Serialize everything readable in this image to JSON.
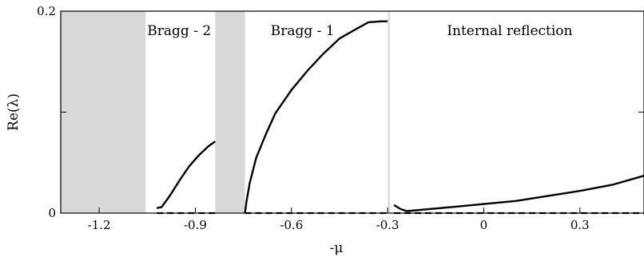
{
  "chart_data": {
    "type": "line",
    "title": "",
    "xlabel": "-μ",
    "ylabel": "Re(λ)",
    "xlim": [
      -1.32,
      0.5
    ],
    "ylim": [
      0,
      0.2
    ],
    "x_ticks": [
      -1.2,
      -0.9,
      -0.6,
      -0.3,
      0,
      0.3
    ],
    "x_tick_labels": [
      "-1.2",
      "-0.9",
      "-0.6",
      "-0.3",
      "0",
      "0.3"
    ],
    "y_ticks": [
      0,
      0.2
    ],
    "y_tick_labels": [
      "0",
      "0.2"
    ],
    "grid": false,
    "legend": false,
    "shaded_bands": [
      {
        "x0": -1.32,
        "x1": -1.055,
        "color": "#d9d9d9"
      },
      {
        "x0": -0.838,
        "x1": -0.745,
        "color": "#d9d9d9"
      },
      {
        "x0": -0.299,
        "x1": -0.293,
        "color": "#d9d9d9"
      }
    ],
    "annotations": [
      {
        "text": "Bragg - 2",
        "x": -1.055,
        "y": 0.178
      },
      {
        "text": "Bragg - 1",
        "x": -0.67,
        "y": 0.178
      },
      {
        "text": "Internal reflection",
        "x": -0.12,
        "y": 0.178
      }
    ],
    "series": [
      {
        "style": "solid",
        "x": [
          -1.02,
          -1.005,
          -0.98,
          -0.95,
          -0.92,
          -0.89,
          -0.86,
          -0.838
        ],
        "y": [
          0.005,
          0.006,
          0.017,
          0.032,
          0.046,
          0.057,
          0.066,
          0.071
        ]
      },
      {
        "style": "solid",
        "x": [
          -0.745,
          -0.74,
          -0.73,
          -0.71,
          -0.68,
          -0.65,
          -0.6,
          -0.55,
          -0.5,
          -0.45,
          -0.4,
          -0.36,
          -0.32,
          -0.3
        ],
        "y": [
          0,
          0.012,
          0.03,
          0.055,
          0.078,
          0.099,
          0.122,
          0.141,
          0.158,
          0.173,
          0.182,
          0.189,
          0.19,
          0.19
        ]
      },
      {
        "style": "solid",
        "x": [
          -0.28,
          -0.26,
          -0.24,
          -0.1,
          0.1,
          0.3,
          0.4,
          0.5
        ],
        "y": [
          0.008,
          0.004,
          0.002,
          0.006,
          0.012,
          0.022,
          0.028,
          0.037
        ]
      },
      {
        "style": "dashed",
        "x": [
          -1.02,
          -0.838
        ],
        "y": [
          0,
          0
        ]
      },
      {
        "style": "dashed",
        "x": [
          -0.745,
          -0.293
        ],
        "y": [
          0,
          0
        ]
      },
      {
        "style": "dashed",
        "x": [
          -0.28,
          0.5
        ],
        "y": [
          0,
          0
        ]
      }
    ]
  }
}
